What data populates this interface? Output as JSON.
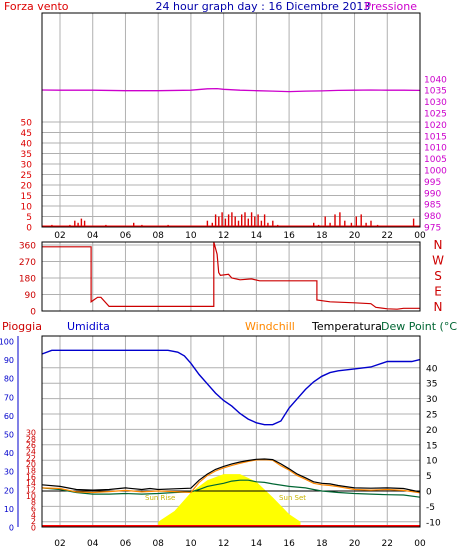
{
  "colors": {
    "wind": "#dd0000",
    "pressure": "#cc00cc",
    "title": "#0000aa",
    "direction": "#cc0000",
    "humidity": "#0000cc",
    "windchill": "#ff8800",
    "temperature": "#000000",
    "dewpoint": "#006633",
    "sun": "#ffff00",
    "grid": "#b0b0b0",
    "frame": "#000000",
    "zero_line": "#ff0000",
    "rain_axis": "#cc0000"
  },
  "header": {
    "title": "24 hour graph day : 16 Dicembre 2013",
    "left_label": "Forza vento",
    "right_label": "Pressione"
  },
  "time_axis": {
    "ticks": [
      "02",
      "04",
      "06",
      "08",
      "10",
      "12",
      "14",
      "16",
      "18",
      "20",
      "22",
      "00"
    ]
  },
  "chart_data": [
    {
      "type": "bar",
      "panel": "wind_pressure",
      "left_axis": {
        "label": "Forza vento",
        "ticks": [
          0,
          5,
          10,
          15,
          20,
          25,
          30,
          35,
          40,
          45,
          50
        ],
        "range": [
          0,
          50
        ]
      },
      "right_axis": {
        "label": "Pressione",
        "ticks": [
          975,
          980,
          985,
          990,
          995,
          1000,
          1005,
          1010,
          1015,
          1020,
          1025,
          1030,
          1035,
          1040
        ],
        "range": [
          975,
          1040
        ]
      },
      "x_ticks": [
        "02",
        "04",
        "06",
        "08",
        "10",
        "12",
        "14",
        "16",
        "18",
        "20",
        "22",
        "00"
      ],
      "x_range_hours": [
        0.9,
        24
      ],
      "pressure_series": {
        "name": "Pressione",
        "x": [
          0.9,
          2,
          4,
          6,
          8,
          10,
          11,
          11.6,
          12,
          13,
          14,
          15,
          16,
          17,
          18,
          19,
          20,
          21,
          22,
          23,
          24
        ],
        "y": [
          1035.1,
          1035.0,
          1035.0,
          1034.8,
          1034.8,
          1035.0,
          1035.6,
          1035.7,
          1035.4,
          1035.0,
          1034.8,
          1034.6,
          1034.4,
          1034.6,
          1034.7,
          1034.9,
          1035.0,
          1035.1,
          1035.0,
          1035.0,
          1034.9
        ]
      },
      "wind_bars": {
        "name": "Forza vento",
        "x": [
          1.5,
          2.6,
          2.9,
          3.1,
          3.3,
          3.5,
          4.8,
          6.5,
          7.0,
          8.6,
          11.0,
          11.3,
          11.5,
          11.7,
          11.9,
          12.1,
          12.3,
          12.5,
          12.7,
          12.9,
          13.1,
          13.3,
          13.5,
          13.7,
          13.9,
          14.1,
          14.3,
          14.5,
          14.7,
          15.0,
          15.3,
          17.5,
          17.8,
          18.2,
          18.5,
          18.8,
          19.1,
          19.4,
          19.8,
          20.1,
          20.4,
          20.7,
          21.0,
          21.4,
          23.6
        ],
        "values": [
          1,
          1,
          3,
          2,
          4,
          3,
          1,
          2,
          1,
          1,
          3,
          2,
          6,
          5,
          7,
          4,
          6,
          7,
          5,
          3,
          6,
          7,
          4,
          7,
          5,
          6,
          3,
          6,
          2,
          3,
          1,
          2,
          1,
          5,
          2,
          6,
          7,
          3,
          2,
          5,
          6,
          2,
          3,
          1,
          4
        ]
      }
    },
    {
      "type": "line",
      "panel": "wind_direction",
      "y_axis": {
        "ticks": [
          0,
          90,
          180,
          270,
          360
        ],
        "range": [
          0,
          360
        ]
      },
      "direction_labels": [
        "N",
        "W",
        "S",
        "E",
        "N"
      ],
      "x_ticks": [
        "02",
        "04",
        "06",
        "08",
        "10",
        "12",
        "14",
        "16",
        "18",
        "20",
        "22",
        "00"
      ],
      "x_range_hours": [
        0.9,
        24
      ],
      "series": [
        {
          "name": "Direzione",
          "x": [
            0.9,
            3.9,
            3.9,
            4.3,
            4.5,
            5,
            11.4,
            11.4,
            11.6,
            11.7,
            11.8,
            12.3,
            12.5,
            13,
            13.7,
            14.2,
            16,
            17.7,
            17.7,
            18.5,
            20,
            21,
            21.3,
            22,
            22.6,
            23,
            24
          ],
          "y": [
            350,
            350,
            50,
            75,
            75,
            25,
            25,
            365,
            310,
            210,
            195,
            200,
            180,
            170,
            175,
            165,
            165,
            165,
            60,
            50,
            45,
            40,
            20,
            12,
            10,
            15,
            15
          ]
        }
      ]
    },
    {
      "type": "line",
      "panel": "humidity_temperature",
      "labels": {
        "rain": "Pioggia",
        "humidity": "Umidita",
        "windchill": "Windchill",
        "temperature": "Temperatura",
        "dewpoint": "Dew Point (°C"
      },
      "humidity_axis": {
        "ticks": [
          0,
          10,
          20,
          30,
          40,
          50,
          60,
          70,
          80,
          90,
          100
        ],
        "range": [
          0,
          100
        ]
      },
      "rain_axis": {
        "ticks": [
          0,
          2,
          4,
          6,
          8,
          10,
          12,
          14,
          16,
          18,
          20,
          22,
          24,
          26,
          28,
          30
        ],
        "range": [
          0,
          30
        ]
      },
      "temp_axis": {
        "ticks": [
          -10,
          -5,
          0,
          5,
          10,
          15,
          20,
          25,
          30,
          35,
          40
        ],
        "range": [
          -10,
          40
        ]
      },
      "annotations": [
        "Sun Rise",
        "Sun Set"
      ],
      "x_ticks": [
        "02",
        "04",
        "06",
        "08",
        "10",
        "12",
        "14",
        "16",
        "18",
        "20",
        "22",
        "00"
      ],
      "x_range_hours": [
        0.9,
        24
      ],
      "sun_elevation": {
        "x": [
          8.0,
          9.0,
          10.0,
          11.0,
          12.0,
          13.0,
          14.0,
          15.0,
          16.0,
          16.7
        ],
        "y": [
          0.0,
          3.5,
          9.5,
          13.5,
          15.5,
          15.5,
          13.0,
          8.0,
          2.5,
          0.0
        ]
      },
      "series": [
        {
          "name": "Umidita",
          "x": [
            0.9,
            1.5,
            3,
            5,
            7,
            8.6,
            9.2,
            9.6,
            10,
            10.5,
            11,
            11.5,
            12,
            12.5,
            13,
            13.5,
            14,
            14.5,
            15,
            15.5,
            16,
            16.5,
            17,
            17.5,
            18,
            18.5,
            19,
            20,
            21,
            22,
            22.5,
            23,
            23.5,
            24
          ],
          "y": [
            93,
            95,
            95,
            95,
            95,
            95,
            94,
            92,
            88,
            82,
            77,
            72,
            68,
            65,
            61,
            58,
            56,
            55,
            55,
            57,
            64,
            69,
            74,
            78,
            81,
            83,
            84,
            85,
            86,
            89,
            89,
            89,
            89,
            90
          ]
        },
        {
          "name": "Temperatura",
          "x": [
            0.9,
            2,
            3,
            4,
            5,
            6,
            7,
            7.5,
            8,
            9,
            10,
            10.5,
            11,
            11.5,
            12,
            12.5,
            13,
            13.5,
            14,
            14.5,
            15,
            15.5,
            16,
            16.5,
            17,
            17.5,
            18,
            18.5,
            19,
            20,
            21,
            22,
            23,
            24
          ],
          "y": [
            2.0,
            1.5,
            0.5,
            0.3,
            0.5,
            1.0,
            0.5,
            0.8,
            0.5,
            0.7,
            0.9,
            3.5,
            5.5,
            7.0,
            8.0,
            8.8,
            9.4,
            9.9,
            10.3,
            10.4,
            10.2,
            8.8,
            7.2,
            5.5,
            4.3,
            3.0,
            2.5,
            2.3,
            1.8,
            1.0,
            0.9,
            1.0,
            0.8,
            -0.3
          ]
        },
        {
          "name": "Windchill",
          "x": [
            0.9,
            2,
            3,
            4,
            5,
            6,
            7,
            8,
            9,
            10,
            10.5,
            11,
            11.5,
            12,
            12.5,
            13,
            13.5,
            14,
            14.5,
            15,
            15.5,
            16,
            16.5,
            17,
            17.5,
            18,
            18.5,
            19,
            20,
            21,
            22,
            23,
            24
          ],
          "y": [
            1.0,
            0.8,
            -0.3,
            -0.5,
            -0.2,
            0.2,
            -0.3,
            0.0,
            -0.2,
            -0.5,
            2.8,
            5.0,
            6.5,
            7.5,
            8.3,
            9.0,
            9.6,
            10.1,
            10.2,
            10.0,
            8.2,
            6.8,
            5.0,
            3.8,
            2.5,
            2.0,
            1.8,
            1.4,
            0.5,
            0.3,
            0.5,
            0.2,
            -0.6
          ]
        },
        {
          "name": "Dew Point",
          "x": [
            0.9,
            2,
            3,
            4,
            5,
            6,
            7,
            8,
            9,
            10,
            10.5,
            11,
            11.5,
            12,
            12.5,
            13,
            13.5,
            14,
            14.5,
            15,
            16,
            17,
            17.5,
            18,
            19,
            20,
            21,
            22,
            23,
            24
          ],
          "y": [
            1.0,
            0.5,
            -0.5,
            -1.0,
            -1.0,
            -0.8,
            -1.0,
            -0.8,
            -0.5,
            -0.3,
            0.5,
            1.5,
            2.0,
            2.5,
            3.2,
            3.5,
            3.5,
            3.0,
            2.8,
            2.3,
            1.5,
            1.0,
            0.5,
            0.0,
            -0.5,
            -0.8,
            -1.0,
            -1.2,
            -1.3,
            -2.0
          ]
        }
      ]
    }
  ]
}
